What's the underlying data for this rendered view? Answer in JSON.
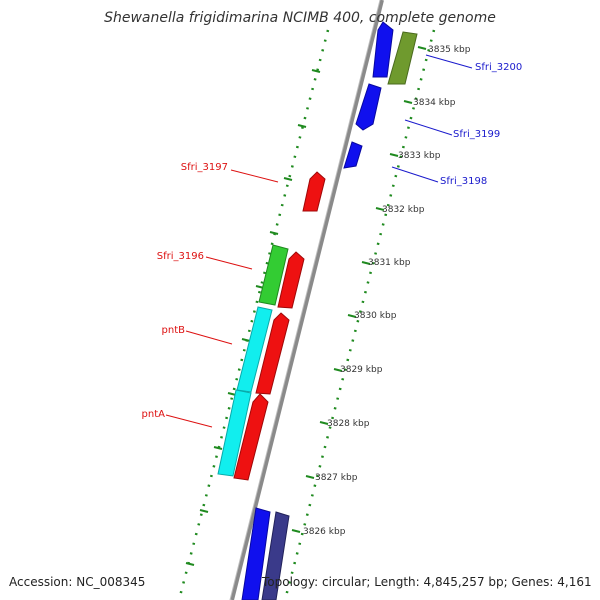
{
  "title": "Shewanella frigidimarina NCIMB 400, complete genome",
  "footer": {
    "accession": "Accession: NC_008345",
    "topology": "Topology: circular; Length: 4,845,257 bp; Genes: 4,161"
  },
  "colors": {
    "backbone": "#8a8a8a",
    "tick": "#1f8a1f",
    "forward_label": "#1a1acc",
    "reverse_label": "#dd1111",
    "blue": "#1010ee",
    "red": "#ee1111",
    "green": "#33cc33",
    "cyan": "#11eeee",
    "olive": "#6f9a2e",
    "navy": "#3a3a8a"
  },
  "scale_labels": [
    "3835 kbp",
    "3834 kbp",
    "3833 kbp",
    "3832 kbp",
    "3831 kbp",
    "3830 kbp",
    "3829 kbp",
    "3828 kbp",
    "3827 kbp",
    "3826 kbp"
  ],
  "gene_labels": [
    {
      "text": "Sfri_3200",
      "strand": "forward"
    },
    {
      "text": "Sfri_3199",
      "strand": "forward"
    },
    {
      "text": "Sfri_3198",
      "strand": "forward"
    },
    {
      "text": "Sfri_3197",
      "strand": "reverse"
    },
    {
      "text": "Sfri_3196",
      "strand": "reverse"
    },
    {
      "text": "pntB",
      "strand": "reverse"
    },
    {
      "text": "pntA",
      "strand": "reverse"
    }
  ]
}
